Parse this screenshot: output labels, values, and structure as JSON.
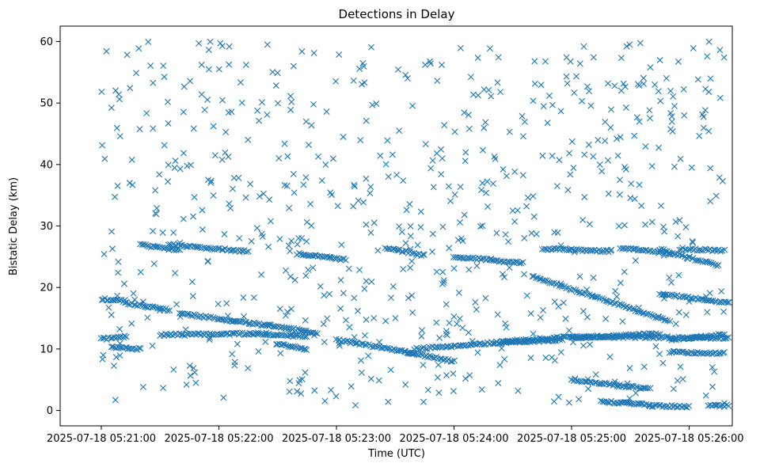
{
  "chart_data": {
    "type": "scatter",
    "title": "Detections in Delay",
    "xlabel": "Time (UTC)",
    "ylabel": "Bistatic Delay (km)",
    "marker": "x",
    "color": "#1f77b4",
    "grid": false,
    "legend": "none",
    "x_axis": {
      "unit": "seconds-after-2025-07-18 05:21:00",
      "range_seconds": [
        -21,
        322
      ],
      "tick_seconds": [
        0,
        60,
        120,
        180,
        240,
        300
      ],
      "tick_labels": [
        "2025-07-18 05:21:00",
        "2025-07-18 05:22:00",
        "2025-07-18 05:23:00",
        "2025-07-18 05:24:00",
        "2025-07-18 05:25:00",
        "2025-07-18 05:26:00"
      ]
    },
    "y_axis": {
      "range": [
        -2.5,
        62.5
      ],
      "ticks": [
        0,
        10,
        20,
        30,
        40,
        50,
        60
      ],
      "tick_labels": [
        "0",
        "10",
        "20",
        "30",
        "40",
        "50",
        "60"
      ]
    },
    "tracks": [
      {
        "x": [
          0,
          13
        ],
        "y": [
          11.6,
          12.0
        ]
      },
      {
        "x": [
          30,
          80
        ],
        "y": [
          12.3,
          12.5
        ]
      },
      {
        "x": [
          80,
          105
        ],
        "y": [
          12.5,
          12.0
        ]
      },
      {
        "x": [
          120,
          160
        ],
        "y": [
          11.5,
          9.3
        ]
      },
      {
        "x": [
          155,
          180
        ],
        "y": [
          9.5,
          8.0
        ]
      },
      {
        "x": [
          160,
          240
        ],
        "y": [
          10.0,
          12.0
        ]
      },
      {
        "x": [
          200,
          235
        ],
        "y": [
          11.0,
          11.5
        ]
      },
      {
        "x": [
          240,
          285
        ],
        "y": [
          11.8,
          12.5
        ]
      },
      {
        "x": [
          240,
          320
        ],
        "y": [
          12.0,
          11.8
        ]
      },
      {
        "x": [
          290,
          318
        ],
        "y": [
          11.5,
          12.3
        ]
      },
      {
        "x": [
          0,
          12
        ],
        "y": [
          18.1,
          17.8
        ]
      },
      {
        "x": [
          12,
          35
        ],
        "y": [
          17.5,
          16.3
        ]
      },
      {
        "x": [
          40,
          85
        ],
        "y": [
          15.8,
          13.8
        ]
      },
      {
        "x": [
          85,
          110
        ],
        "y": [
          14.0,
          12.5
        ]
      },
      {
        "x": [
          90,
          105
        ],
        "y": [
          10.8,
          9.9
        ]
      },
      {
        "x": [
          220,
          290
        ],
        "y": [
          21.8,
          14.5
        ]
      },
      {
        "x": [
          285,
          325
        ],
        "y": [
          19.0,
          17.3
        ]
      },
      {
        "x": [
          5,
          20
        ],
        "y": [
          10.3,
          10.0
        ]
      },
      {
        "x": [
          20,
          40
        ],
        "y": [
          27.0,
          26.0
        ]
      },
      {
        "x": [
          35,
          75
        ],
        "y": [
          27.0,
          25.8
        ]
      },
      {
        "x": [
          100,
          125
        ],
        "y": [
          25.5,
          24.5
        ]
      },
      {
        "x": [
          145,
          165
        ],
        "y": [
          26.5,
          25.2
        ]
      },
      {
        "x": [
          180,
          215
        ],
        "y": [
          25.0,
          24.0
        ]
      },
      {
        "x": [
          225,
          260
        ],
        "y": [
          26.3,
          25.9
        ]
      },
      {
        "x": [
          240,
          280
        ],
        "y": [
          5.0,
          3.5
        ]
      },
      {
        "x": [
          255,
          280
        ],
        "y": [
          1.5,
          0.9
        ]
      },
      {
        "x": [
          265,
          290
        ],
        "y": [
          26.5,
          25.5
        ]
      },
      {
        "x": [
          285,
          315
        ],
        "y": [
          26.2,
          23.5
        ]
      },
      {
        "x": [
          295,
          318
        ],
        "y": [
          26.3,
          26.0
        ]
      },
      {
        "x": [
          290,
          318
        ],
        "y": [
          9.5,
          9.3
        ]
      },
      {
        "x": [
          280,
          300
        ],
        "y": [
          0.8,
          0.6
        ]
      },
      {
        "x": [
          310,
          320
        ],
        "y": [
          0.8,
          0.8
        ]
      }
    ],
    "clutter_seed": 7,
    "clutter_count": 700
  }
}
